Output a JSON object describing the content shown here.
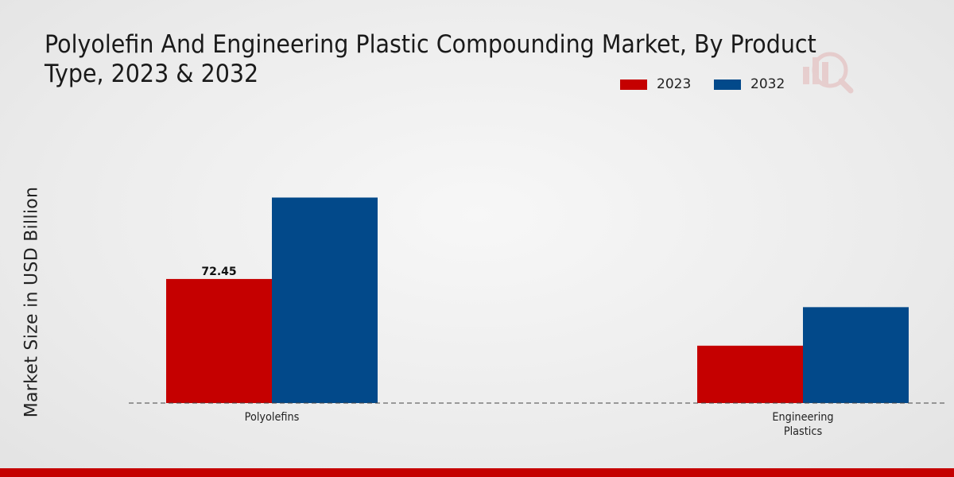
{
  "chart_data": {
    "type": "bar",
    "title": "Polyolefin And Engineering Plastic Compounding Market, By Product Type, 2023 & 2032",
    "xlabel": "",
    "ylabel": "Market Size in USD Billion",
    "categories": [
      "Polyolefins",
      "Engineering\nPlastics"
    ],
    "series": [
      {
        "name": "2023",
        "color": "#c50000",
        "values": [
          72.45,
          33.5
        ],
        "data_labels": [
          "72.45",
          null
        ]
      },
      {
        "name": "2032",
        "color": "#02498a",
        "values": [
          120.0,
          56.0
        ],
        "data_labels": [
          null,
          null
        ]
      }
    ],
    "ylim": [
      0,
      175
    ],
    "grid": false,
    "legend_position": "top-right"
  },
  "colors": {
    "accent": "#c50000",
    "secondary": "#02498a",
    "background": "#ebebeb"
  },
  "watermark": {
    "icon": "bar-chart-magnifier-icon"
  }
}
